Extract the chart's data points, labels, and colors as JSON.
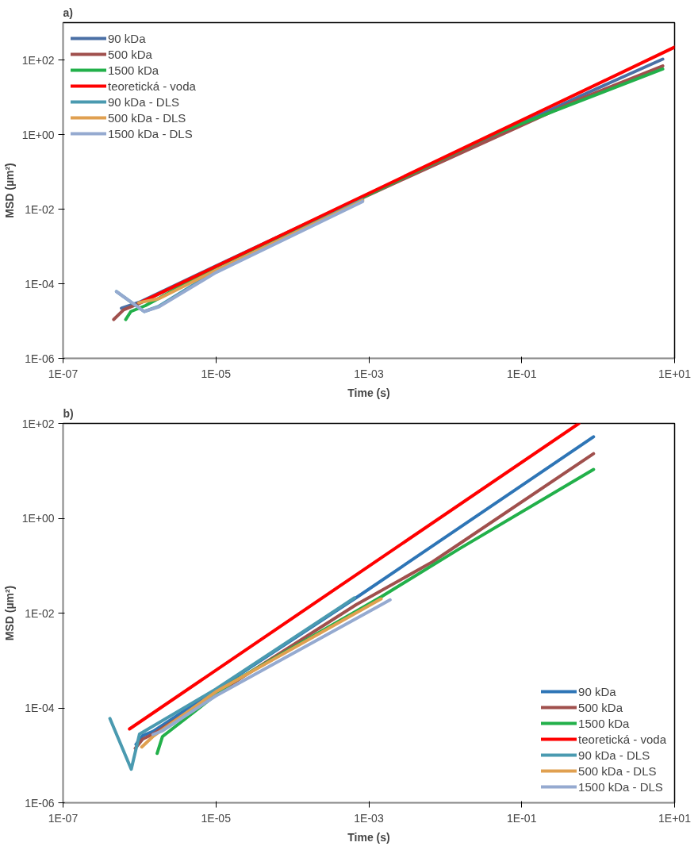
{
  "chart_data": [
    {
      "type": "line",
      "title": "a)",
      "xlabel": "Time (s)",
      "ylabel": "MSD (µm²)",
      "log": "xy",
      "grid": false,
      "legend": "top left",
      "line_style": "solid",
      "xlim": [
        1e-07,
        10
      ],
      "ylim": [
        1e-06,
        1000
      ],
      "xticks": [
        {
          "value": 1e-07,
          "label": "1E-07"
        },
        {
          "value": 1e-05,
          "label": "1E-05"
        },
        {
          "value": 0.001,
          "label": "1E-03"
        },
        {
          "value": 0.1,
          "label": "1E-01"
        },
        {
          "value": 10,
          "label": "1E+01"
        }
      ],
      "yticks": [
        {
          "value": 1e-06,
          "label": "1E-06"
        },
        {
          "value": 0.0001,
          "label": "1E-04"
        },
        {
          "value": 0.01,
          "label": "1E-02"
        },
        {
          "value": 1,
          "label": "1E+00"
        },
        {
          "value": 100,
          "label": "1E+02"
        }
      ],
      "series": [
        {
          "name": "90 kDa",
          "color": "#4a6fa5",
          "x": [
            5.8e-07,
            1e-06,
            1e-05,
            0.001,
            0.54,
            7
          ],
          "values": [
            2.2e-05,
            3.2e-05,
            0.0003,
            0.025,
            10,
            105
          ]
        },
        {
          "name": "500 kDa",
          "color": "#a0504d",
          "x": [
            4.6e-07,
            6.2e-07,
            1e-06,
            1e-05,
            0.001,
            0.54,
            7
          ],
          "values": [
            1.1e-05,
            2e-05,
            3e-05,
            0.00029,
            0.024,
            8.5,
            69
          ]
        },
        {
          "name": "1500 kDa",
          "color": "#22b04a",
          "x": [
            6.6e-07,
            7.7e-07,
            1.2e-06,
            1e-05,
            0.0008,
            0.04,
            0.54,
            7
          ],
          "values": [
            1.1e-05,
            1.8e-05,
            2.6e-05,
            0.00028,
            0.02,
            0.95,
            7.5,
            57
          ]
        },
        {
          "name": "teoretická - voda",
          "color": "#ff0000",
          "x": [
            1.05e-06,
            10
          ],
          "values": [
            3.2e-05,
            220
          ]
        },
        {
          "name": "90 kDa - DLS",
          "color": "#4a9ab0",
          "x": [
            5e-07,
            1.15e-06,
            1.8e-06,
            1e-05,
            0.00083
          ],
          "values": [
            6.2e-05,
            1.8e-05,
            2.5e-05,
            0.00022,
            0.018
          ]
        },
        {
          "name": "500 kDa - DLS",
          "color": "#e0a050",
          "x": [
            9.8e-07,
            1.8e-06,
            1e-05,
            0.00083
          ],
          "values": [
            3.1e-05,
            4e-05,
            0.00023,
            0.017
          ]
        },
        {
          "name": "1500 kDa - DLS",
          "color": "#95aad0",
          "x": [
            5e-07,
            1.15e-06,
            1.8e-06,
            1e-05,
            0.00083
          ],
          "values": [
            6.2e-05,
            1.8e-05,
            2.4e-05,
            0.0002,
            0.016
          ]
        }
      ]
    },
    {
      "type": "line",
      "title": "b)",
      "xlabel": "Time (s)",
      "ylabel": "MSD (µm²)",
      "log": "xy",
      "grid": false,
      "legend": "bottom right",
      "line_style": "solid",
      "xlim": [
        1e-07,
        10
      ],
      "ylim": [
        1e-06,
        100
      ],
      "xticks": [
        {
          "value": 1e-07,
          "label": "1E-07"
        },
        {
          "value": 1e-05,
          "label": "1E-05"
        },
        {
          "value": 0.001,
          "label": "1E-03"
        },
        {
          "value": 0.1,
          "label": "1E-01"
        },
        {
          "value": 10,
          "label": "1E+01"
        }
      ],
      "yticks": [
        {
          "value": 1e-06,
          "label": "1E-06"
        },
        {
          "value": 0.0001,
          "label": "1E-04"
        },
        {
          "value": 0.01,
          "label": "1E-02"
        },
        {
          "value": 1,
          "label": "1E+00"
        },
        {
          "value": 100,
          "label": "1E+02"
        }
      ],
      "series": [
        {
          "name": "90 kDa",
          "color": "#2e75b6",
          "x": [
            9e-07,
            1.1e-06,
            1.5e-06,
            0.00068,
            0.87
          ],
          "values": [
            1.7e-05,
            2.6e-05,
            3.2e-05,
            0.021,
            52
          ]
        },
        {
          "name": "500 kDa",
          "color": "#a0504d",
          "x": [
            8.8e-07,
            1.1e-06,
            1.5e-06,
            0.00068,
            0.0068,
            0.87
          ],
          "values": [
            1.4e-05,
            2.2e-05,
            2.8e-05,
            0.015,
            0.12,
            23
          ]
        },
        {
          "name": "1500 kDa",
          "color": "#22b04a",
          "x": [
            1.7e-06,
            2e-06,
            1.6e-05,
            0.00145,
            0.0155,
            0.87
          ],
          "values": [
            1.1e-05,
            2.5e-05,
            0.00034,
            0.022,
            0.23,
            10.7
          ]
        },
        {
          "name": "teoretická - voda",
          "color": "#ff0000",
          "x": [
            7.4e-07,
            0.56
          ],
          "values": [
            3.6e-05,
            100
          ]
        },
        {
          "name": "90 kDa - DLS",
          "color": "#4a9ab0",
          "x": [
            4.1e-07,
            7.8e-07,
            1e-06,
            1e-05,
            0.00065
          ],
          "values": [
            6e-05,
            5.1e-06,
            2.8e-05,
            0.00025,
            0.021
          ]
        },
        {
          "name": "500 kDa - DLS",
          "color": "#e0a050",
          "x": [
            1.07e-06,
            1.5e-06,
            1e-05,
            0.00145
          ],
          "values": [
            1.5e-05,
            2.5e-05,
            0.00022,
            0.02
          ]
        },
        {
          "name": "1500 kDa - DLS",
          "color": "#95aad0",
          "x": [
            1.5e-06,
            2e-06,
            1e-05,
            0.0019
          ],
          "values": [
            2.75e-05,
            3.3e-05,
            0.00018,
            0.019
          ]
        }
      ]
    }
  ]
}
